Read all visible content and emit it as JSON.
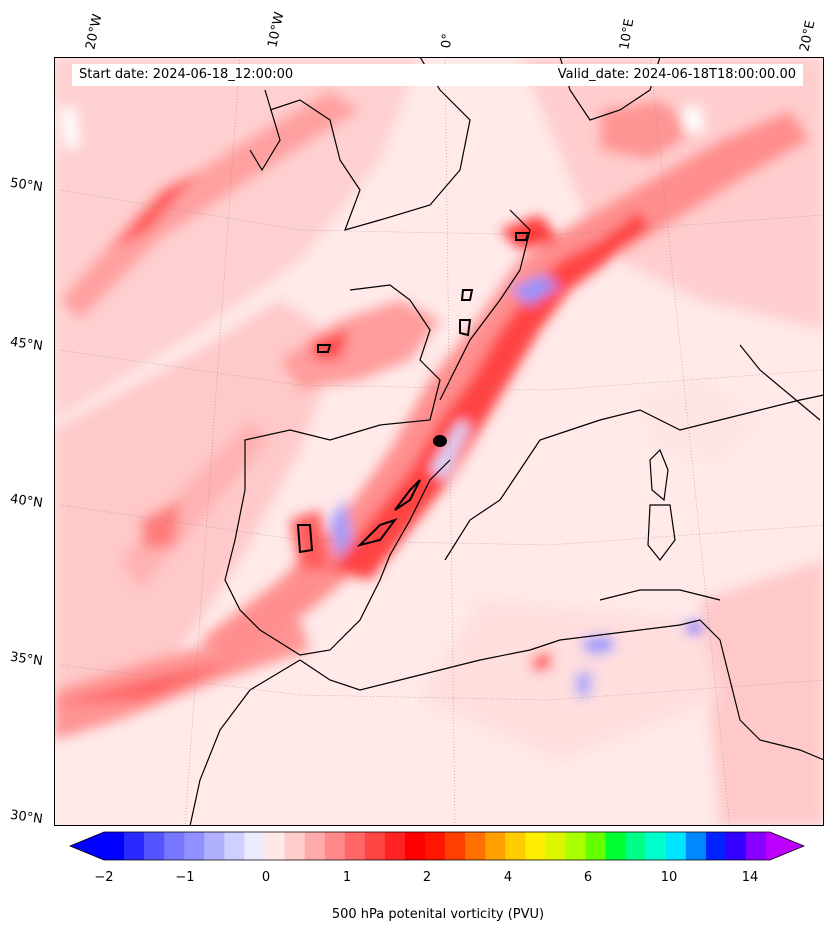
{
  "header": {
    "start_date": "Start date: 2024-06-18_12:00:00",
    "valid_date": "Valid_date: 2024-06-18T18:00:00.00"
  },
  "longitude_labels": [
    "20°W",
    "10°W",
    "0°",
    "10°E",
    "20°E"
  ],
  "latitude_labels": [
    "50°N",
    "45°N",
    "40°N",
    "35°N",
    "30°N"
  ],
  "colorbar": {
    "label": "500 hPa potenital vorticity (PVU)",
    "tick_labels": [
      "−2",
      "−1",
      "0",
      "1",
      "2",
      "4",
      "6",
      "10",
      "14"
    ],
    "colors": [
      "#0000ff",
      "#2a2aff",
      "#5555ff",
      "#7777ff",
      "#9090ff",
      "#b0b0ff",
      "#d0d0ff",
      "#ececff",
      "#ffe8e8",
      "#ffcccc",
      "#ffaaaa",
      "#ff8888",
      "#ff6666",
      "#ff4444",
      "#ff2222",
      "#ff0000",
      "#ff1500",
      "#ff4000",
      "#ff7000",
      "#ffa000",
      "#ffcc00",
      "#ffee00",
      "#ddf500",
      "#aaff00",
      "#66ff00",
      "#00ff33",
      "#00ff88",
      "#00ffcc",
      "#00e5ff",
      "#0088ff",
      "#0022ff",
      "#3300ff",
      "#8800ff",
      "#bb00ff"
    ],
    "under_color": "#0000ff",
    "over_color": "#bb00ff"
  }
}
